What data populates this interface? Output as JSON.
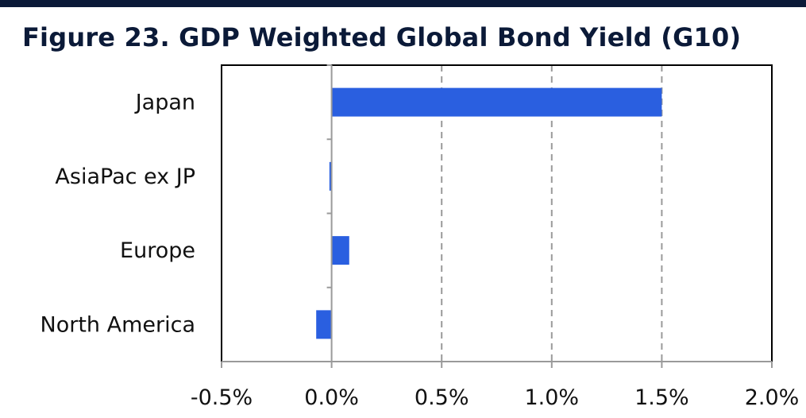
{
  "title": "Figure 23. GDP Weighted Global Bond Yield (G10)",
  "colors": {
    "bar": "#2a5fe0",
    "title": "#0b1a38",
    "grid": "#9a9a9a",
    "frame": "#000000"
  },
  "chart_data": {
    "type": "bar",
    "orientation": "horizontal",
    "title": "Figure 23. GDP Weighted Global Bond Yield (G10)",
    "categories": [
      "Japan",
      "AsiaPac ex JP",
      "Europe",
      "North America"
    ],
    "values": [
      1.5,
      -0.01,
      0.08,
      -0.07
    ],
    "unit": "%",
    "xlim": [
      -0.5,
      2.0
    ],
    "xticks": [
      -0.5,
      0.0,
      0.5,
      1.0,
      1.5,
      2.0
    ],
    "xtick_labels": [
      "-0.5%",
      "0.0%",
      "0.5%",
      "1.0%",
      "1.5%",
      "2.0%"
    ],
    "xlabel": "",
    "ylabel": "",
    "grid": "vertical dashed",
    "legend": "none"
  }
}
